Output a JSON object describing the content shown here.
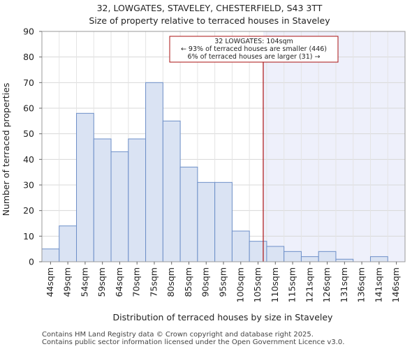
{
  "chart_data": {
    "type": "bar",
    "title": "32, LOWGATES, STAVELEY, CHESTERFIELD, S43 3TT",
    "subtitle": "Size of property relative to terraced houses in Staveley",
    "xlabel": "Distribution of terraced houses by size in Staveley",
    "ylabel": "Number of terraced properties",
    "ylim": [
      0,
      90
    ],
    "yticks": [
      0,
      10,
      20,
      30,
      40,
      50,
      60,
      70,
      80,
      90
    ],
    "categories": [
      "44sqm",
      "49sqm",
      "54sqm",
      "59sqm",
      "64sqm",
      "70sqm",
      "75sqm",
      "80sqm",
      "85sqm",
      "90sqm",
      "95sqm",
      "100sqm",
      "105sqm",
      "110sqm",
      "115sqm",
      "121sqm",
      "126sqm",
      "131sqm",
      "136sqm",
      "141sqm",
      "146sqm"
    ],
    "values": [
      5,
      14,
      58,
      48,
      43,
      48,
      70,
      55,
      37,
      31,
      31,
      12,
      8,
      6,
      4,
      2,
      4,
      1,
      0,
      2,
      0
    ],
    "marker": {
      "category_index": 12,
      "value_sqm": 104
    },
    "annotation": {
      "line1": "32 LOWGATES: 104sqm",
      "line2": "← 93% of terraced houses are smaller (446)",
      "line3": "6% of terraced houses are larger (31) →"
    },
    "colors": {
      "bar_fill": "#dae3f3",
      "bar_edge": "#6d8fc8",
      "marker": "#aa1111",
      "highlight": "#eef0fb"
    }
  },
  "footer": {
    "line1": "Contains HM Land Registry data © Crown copyright and database right 2025.",
    "line2": "Contains public sector information licensed under the Open Government Licence v3.0."
  }
}
